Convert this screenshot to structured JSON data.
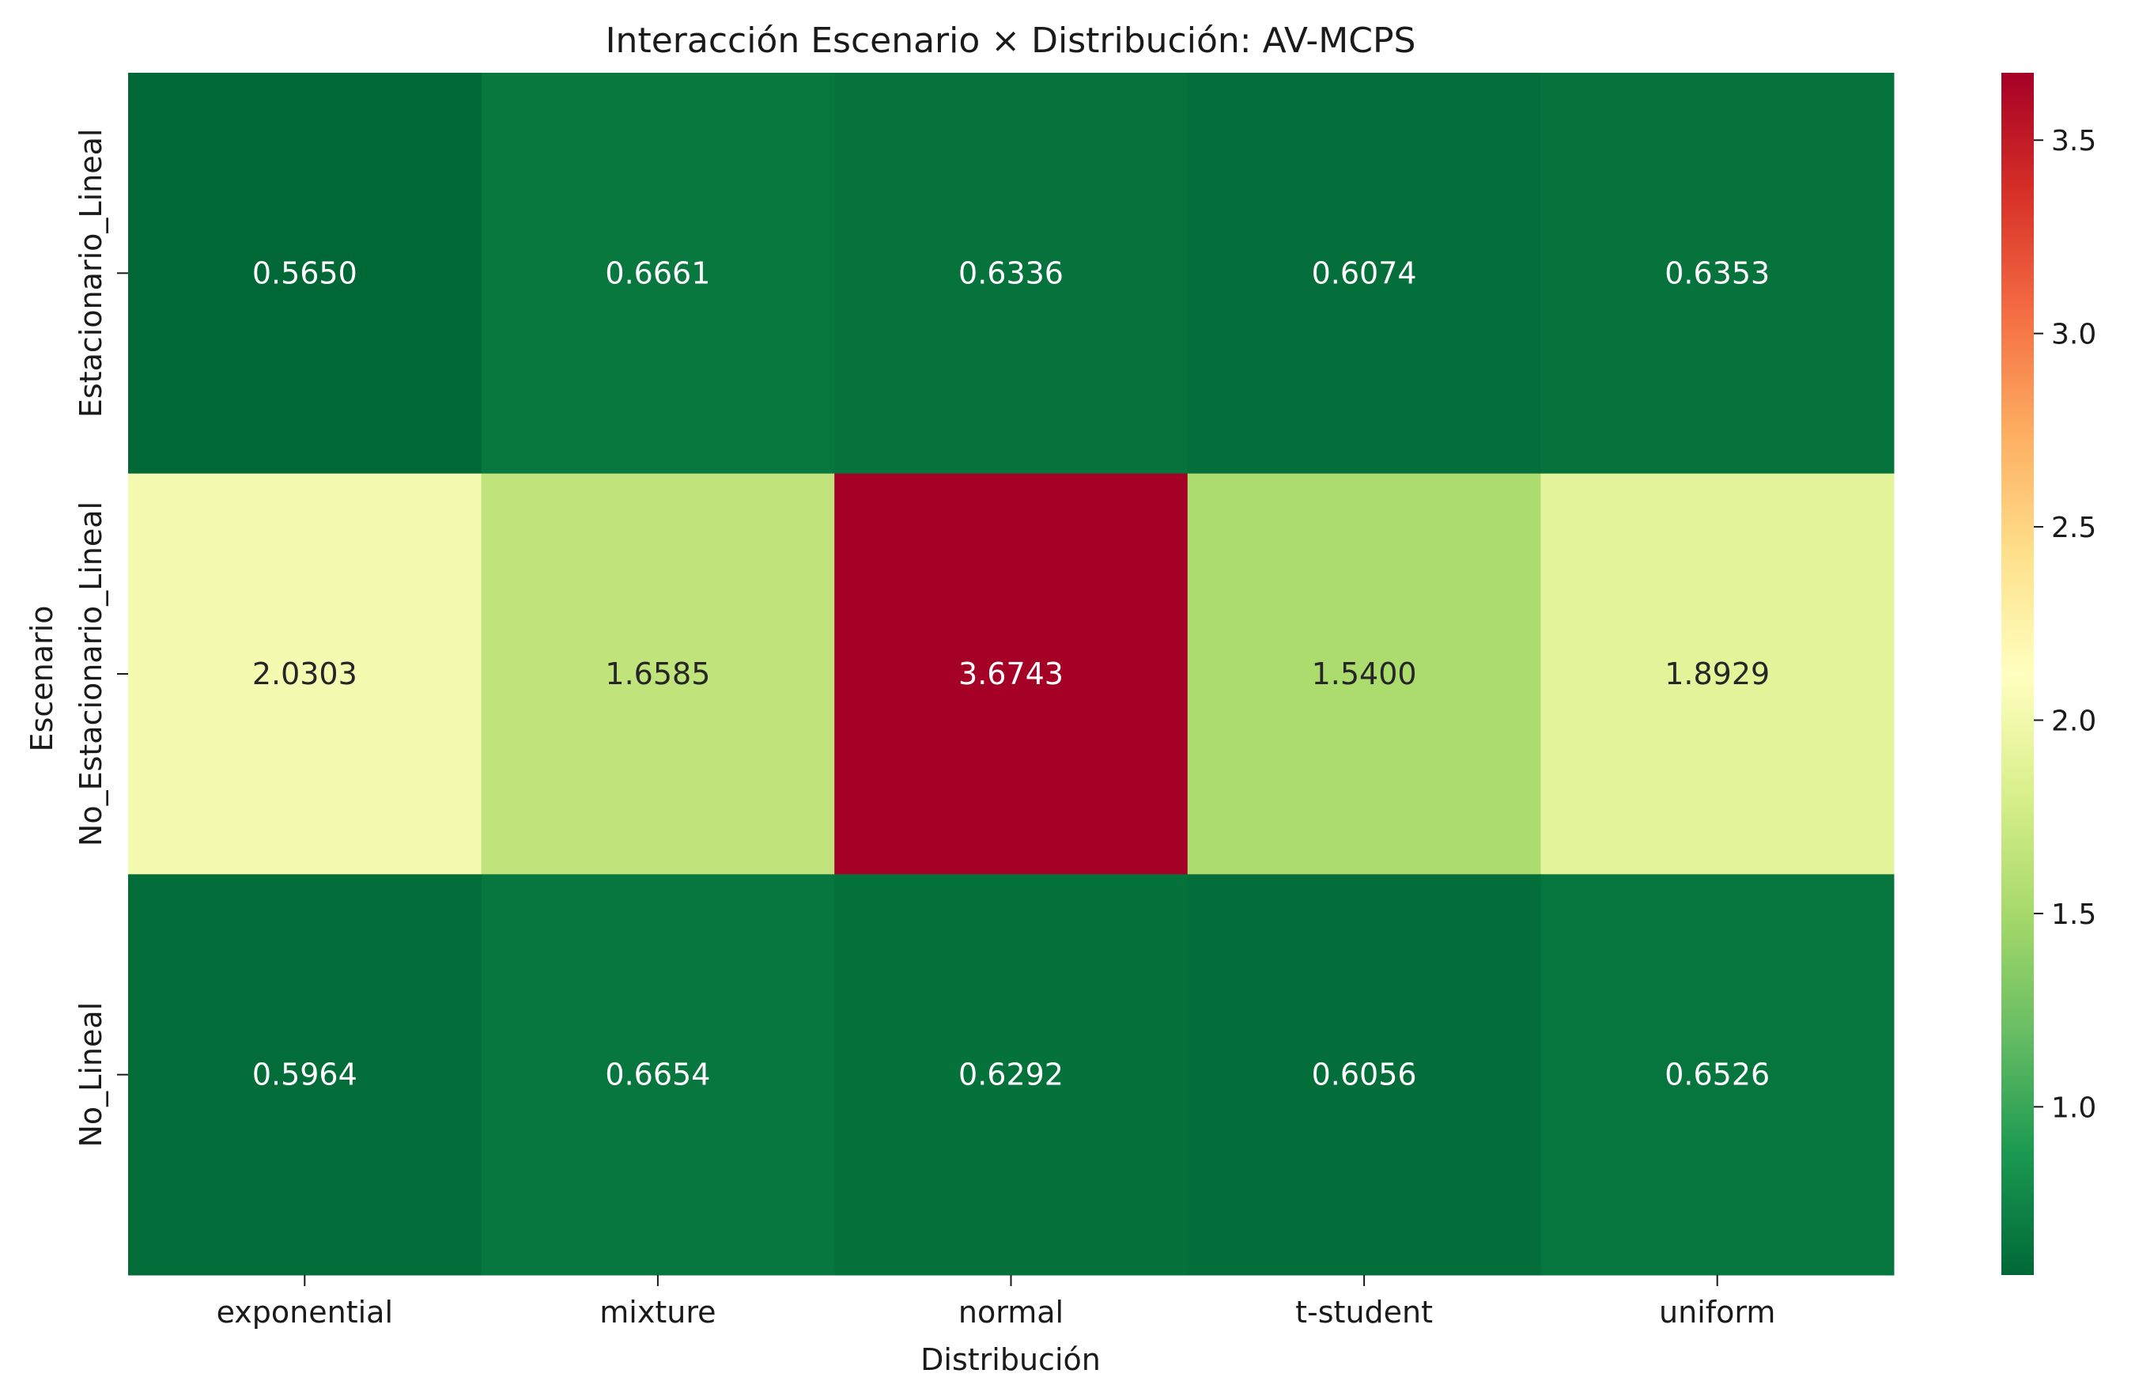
{
  "chart_data": {
    "type": "heatmap",
    "title": "Interacción Escenario × Distribución: AV-MCPS",
    "xlabel": "Distribución",
    "ylabel": "Escenario",
    "x_categories": [
      "exponential",
      "mixture",
      "normal",
      "t-student",
      "uniform"
    ],
    "y_categories": [
      "Estacionario_Lineal",
      "No_Estacionario_Lineal",
      "No_Lineal"
    ],
    "values": [
      [
        0.565,
        0.6661,
        0.6336,
        0.6074,
        0.6353
      ],
      [
        2.0303,
        1.6585,
        3.6743,
        1.54,
        1.8929
      ],
      [
        0.5964,
        0.6654,
        0.6292,
        0.6056,
        0.6526
      ]
    ],
    "value_format": "0.0000",
    "colormap": "RdYlGn_r",
    "colorbar": {
      "range": [
        0.565,
        3.6743
      ],
      "ticks": [
        1.0,
        1.5,
        2.0,
        2.5,
        3.0,
        3.5
      ],
      "tick_labels": [
        "1.0",
        "1.5",
        "2.0",
        "2.5",
        "3.0",
        "3.5"
      ]
    }
  }
}
